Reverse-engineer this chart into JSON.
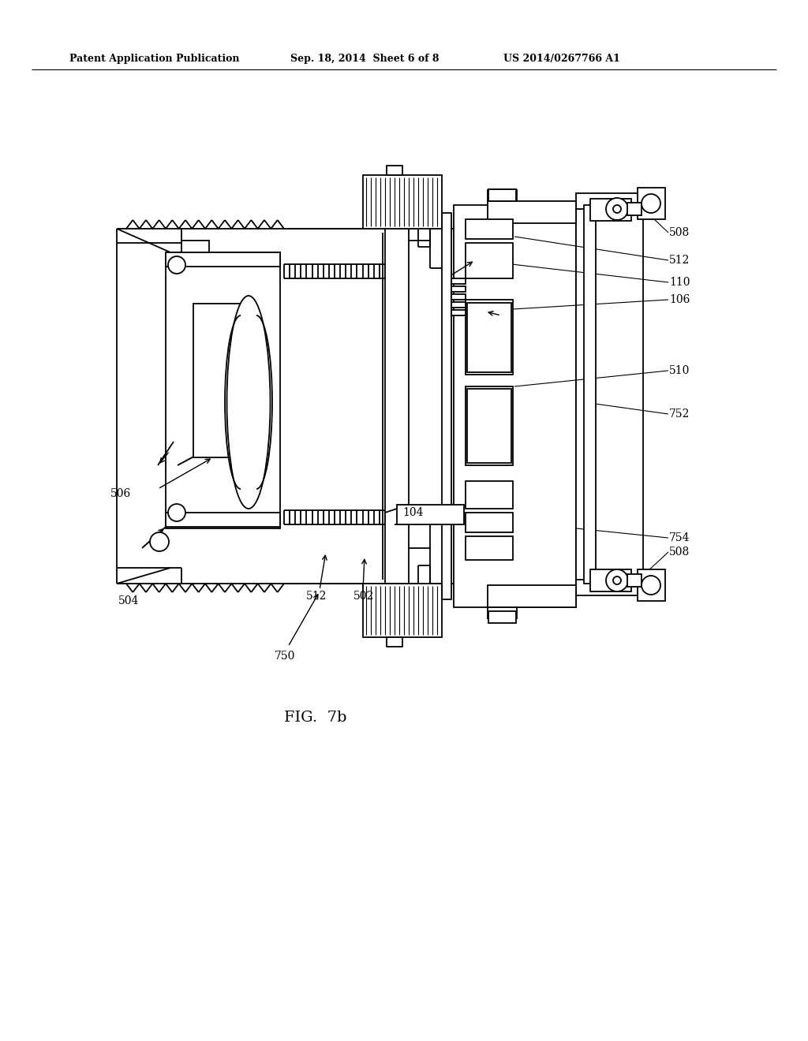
{
  "bg_color": "#ffffff",
  "line_color": "#000000",
  "header_left": "Patent Application Publication",
  "header_center": "Sep. 18, 2014  Sheet 6 of 8",
  "header_right": "US 2014/0267766 A1",
  "fig_label": "FIG.  7b"
}
